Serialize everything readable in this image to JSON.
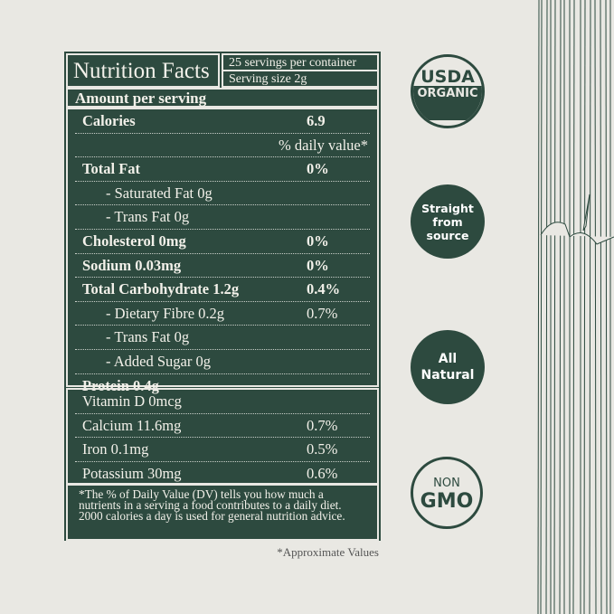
{
  "nutrition": {
    "title": "Nutrition Facts",
    "servings": "25 servings per container",
    "serving_size": "Serving size 2g",
    "amount_per_serving": "Amount per serving",
    "calories": {
      "label": "Calories",
      "value": "6.9"
    },
    "daily_value_header": "% daily value*",
    "rows": [
      {
        "label": "Total Fat",
        "value": "0%"
      },
      {
        "label": "- Saturated Fat 0g",
        "value": ""
      },
      {
        "label": "- Trans Fat 0g",
        "value": ""
      },
      {
        "label": "Cholesterol 0mg",
        "value": "0%"
      },
      {
        "label": "Sodium 0.03mg",
        "value": "0%"
      },
      {
        "label": "Total Carbohydrate 1.2g",
        "value": "0.4%"
      },
      {
        "label": "- Dietary Fibre 0.2g",
        "value": "0.7%"
      },
      {
        "label": "- Trans Fat 0g",
        "value": ""
      },
      {
        "label": "- Added Sugar 0g",
        "value": ""
      },
      {
        "label": "Protein 0.4g",
        "value": ""
      }
    ],
    "vitamins": [
      {
        "label": "Vitamin D 0mcg",
        "value": ""
      },
      {
        "label": "Calcium 11.6mg",
        "value": "0.7%"
      },
      {
        "label": "Iron 0.1mg",
        "value": "0.5%"
      },
      {
        "label": "Potassium 30mg",
        "value": "0.6%"
      }
    ],
    "footnote": "*The % of Daily Value (DV) tells you how much a nutrients in a serving a food contributes to a daily diet. 2000 calories a day is used for general nutrition advice.",
    "approx_note": "*Approximate Values"
  },
  "badges": {
    "usda": {
      "top": "USDA",
      "bottom": "ORGANIC"
    },
    "straight": "Straight from source",
    "natural": "All Natural",
    "nongmo": {
      "top": "NON",
      "bottom": "GMO"
    }
  },
  "colors": {
    "panel": "#2d4a3f",
    "background": "#e9e8e3"
  }
}
